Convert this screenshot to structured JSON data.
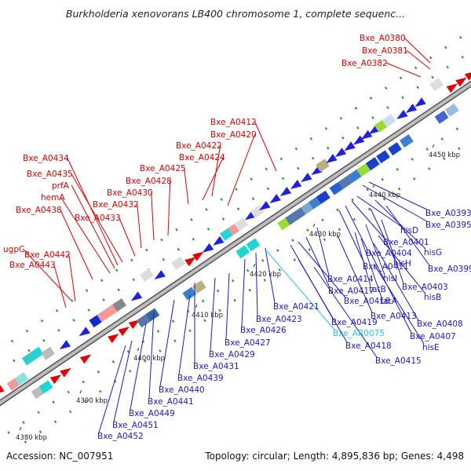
{
  "title": "Burkholderia xenovorans LB400 chromosome 1, complete sequenc...",
  "accession": "Accession: NC_007951",
  "summary": "Topology: circular; Length: 4,895,836 bp; Genes: 4,498",
  "kbp_labels": [
    {
      "text": "4380 kbp",
      "pos": 0
    },
    {
      "text": "4390 kbp",
      "pos": 10
    },
    {
      "text": "4400 kbp",
      "pos": 20
    },
    {
      "text": "4410 kbp",
      "pos": 30
    },
    {
      "text": "4420 kbp",
      "pos": 40
    },
    {
      "text": "4430 kbp",
      "pos": 50
    },
    {
      "text": "4440 kbp",
      "pos": 60
    },
    {
      "text": "4450 kbp",
      "pos": 70
    }
  ],
  "colors": {
    "forward_label": "#e00000",
    "reverse_label": "#1a1acc",
    "rna_label": "#33bbee",
    "backbone": "#999999"
  },
  "labels_top": [
    "Bxe_A0380",
    "Bxe_A0381",
    "Bxe_A0382",
    "Bxe_A0412",
    "Bxe_A0420",
    "Bxe_A0422",
    "Bxe_A0424",
    "Bxe_A0425",
    "Bxe_A0428",
    "Bxe_A0430",
    "Bxe_A0432",
    "Bxe_A0433",
    "Bxe_A0434",
    "Bxe_A0435",
    "prfA",
    "hemA",
    "Bxe_A0438",
    "ugpC",
    "Bxe_A0442",
    "Bxe_A0443"
  ],
  "labels_bottom": [
    "Bxe_A0393",
    "Bxe_A0395",
    "hisD",
    "Bxe_A0401",
    "hisG",
    "Bxe_A0404",
    "Bxe_A0399",
    "Bxe_A0411",
    "hisH",
    "Bxe_A0403",
    "Bxe_A0414",
    "hisI",
    "hisB",
    "Bxe_A0417",
    "tatB",
    "Bxe_A0416",
    "tatA",
    "Bxe_A0421",
    "Bxe_A0413",
    "Bxe_A0408",
    "Bxe_A0423",
    "Bxe_A0419",
    "Bxe_A0407",
    "Bxe_A0426",
    "Bxe_AR0075",
    "Bxe_A0418",
    "hisE",
    "Bxe_A0427",
    "Bxe_A0415",
    "Bxe_A0429",
    "Bxe_A0431",
    "Bxe_A0439",
    "Bxe_A0440",
    "Bxe_A0441",
    "Bxe_A0449",
    "Bxe_A0451",
    "Bxe_A0452"
  ]
}
